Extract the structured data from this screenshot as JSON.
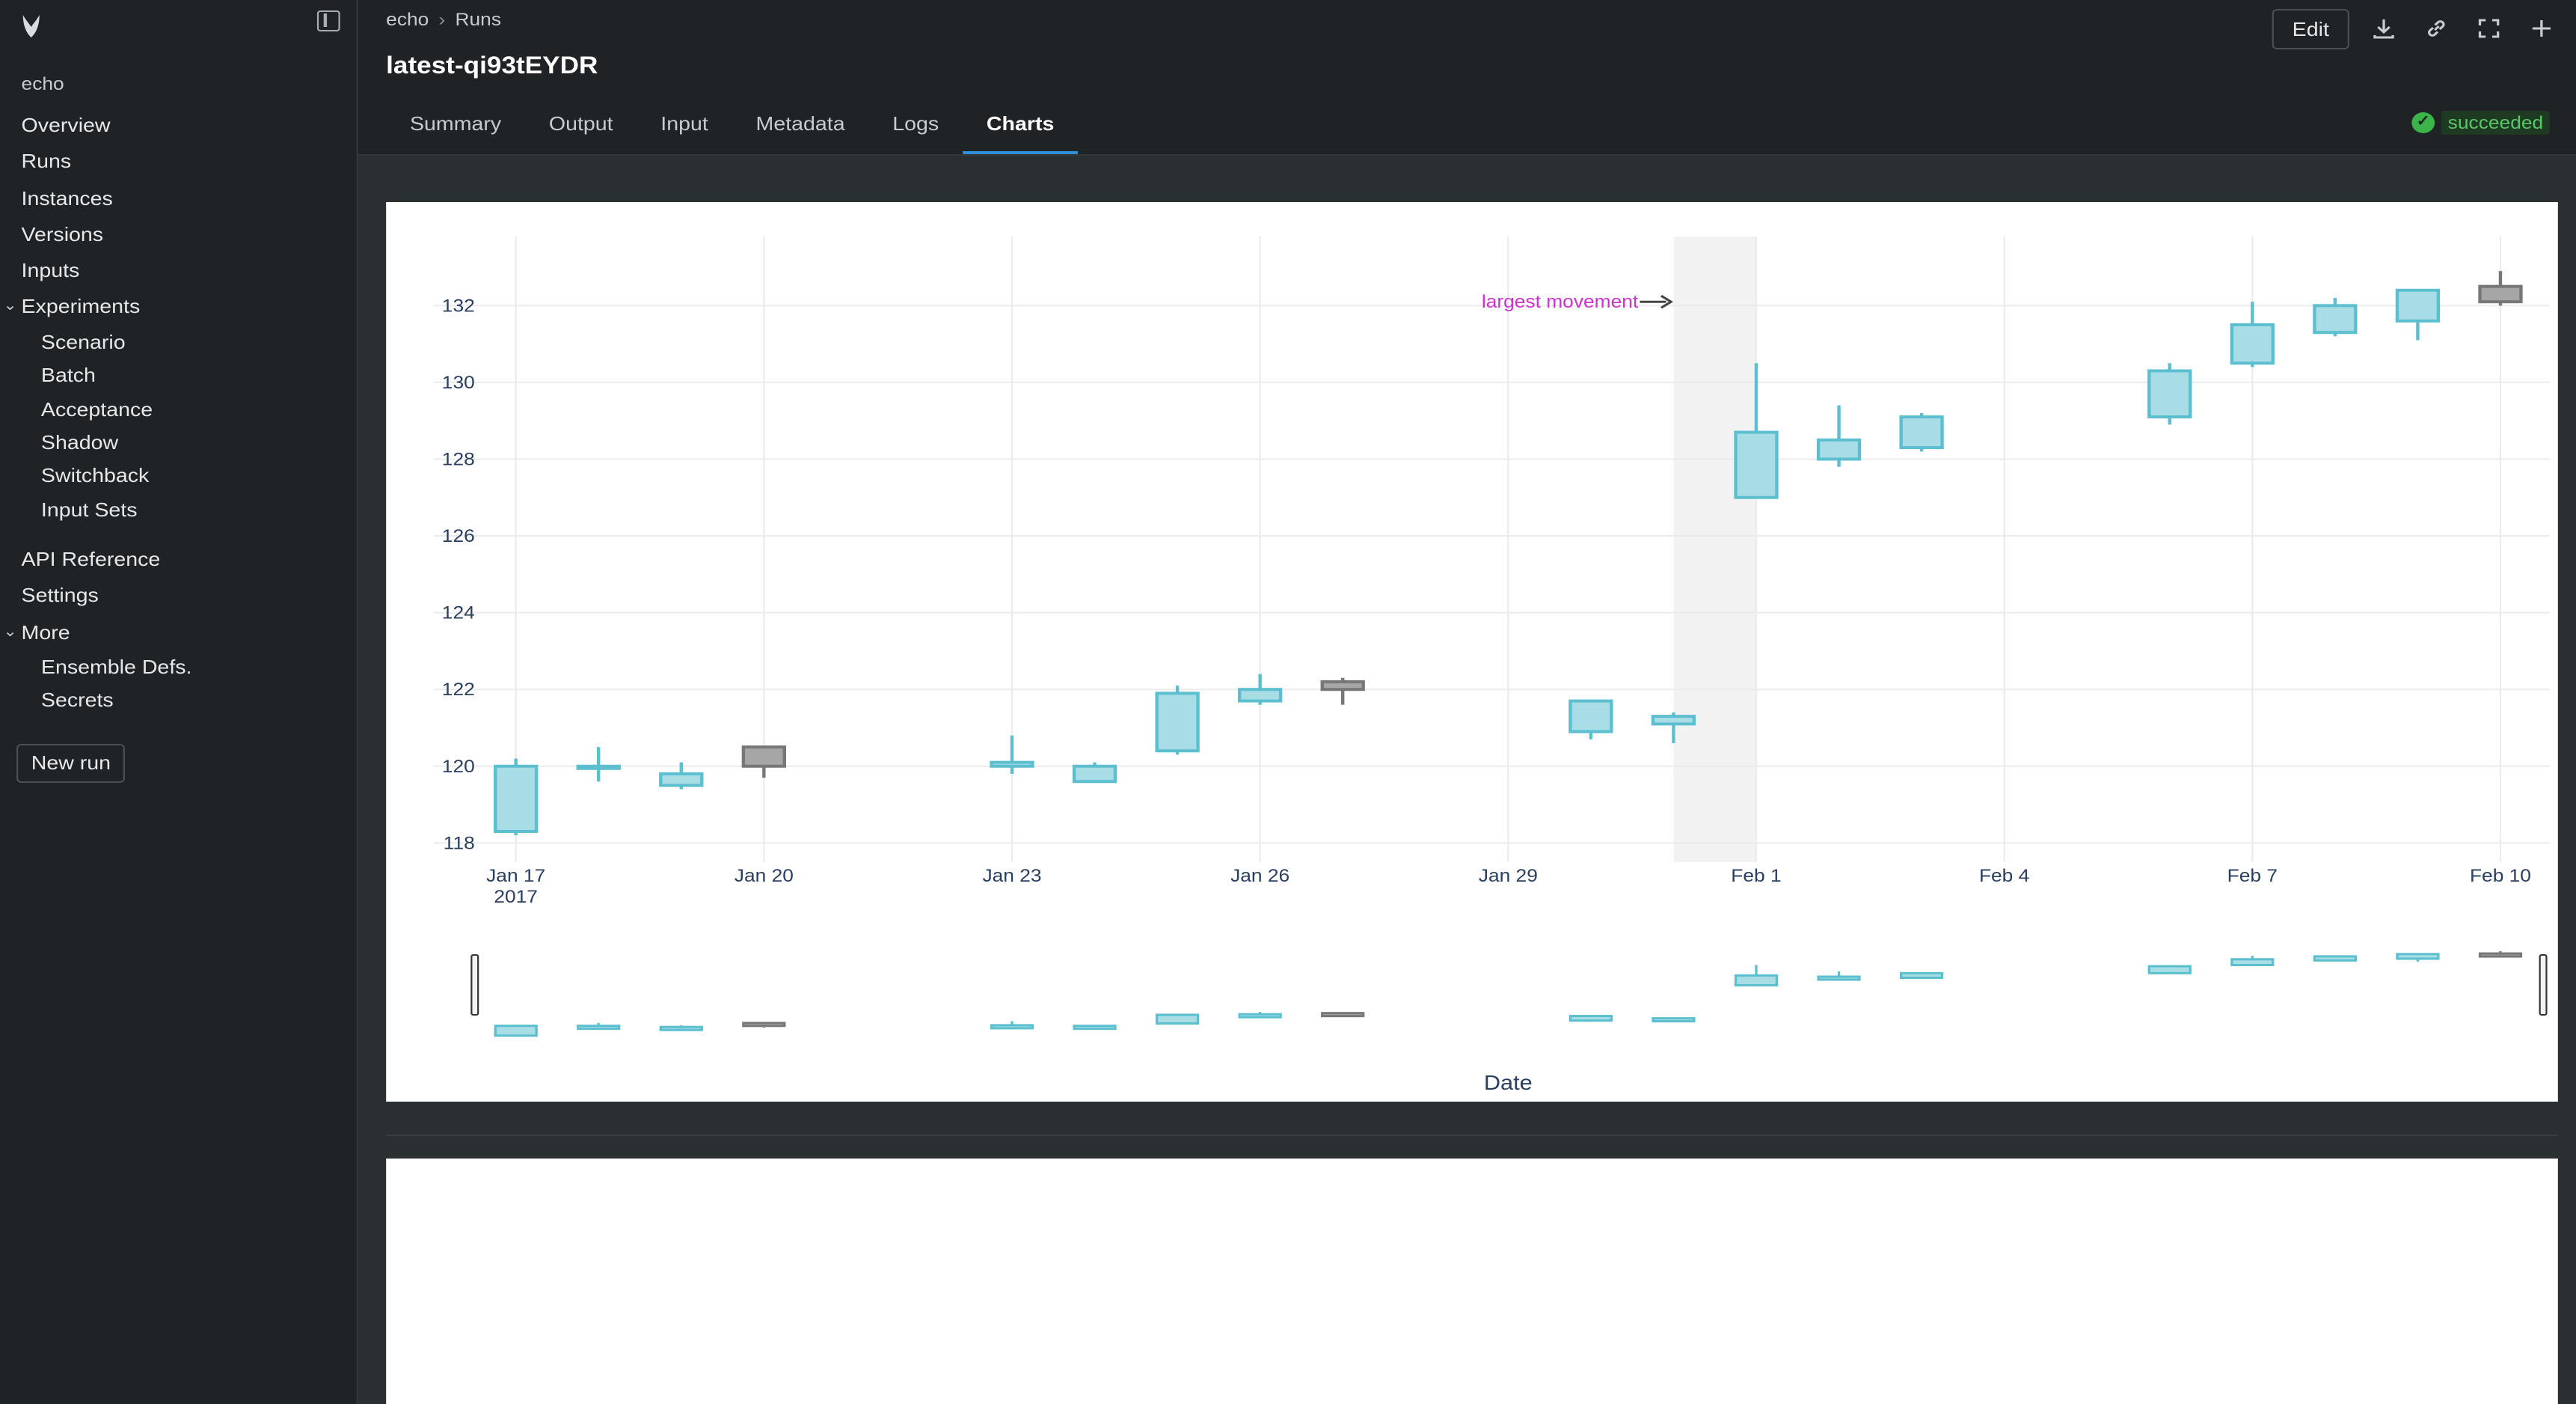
{
  "sidebar": {
    "label": "echo",
    "items": [
      {
        "label": "Overview"
      },
      {
        "label": "Runs"
      },
      {
        "label": "Instances"
      },
      {
        "label": "Versions"
      },
      {
        "label": "Inputs"
      },
      {
        "label": "Experiments"
      },
      {
        "label": "Scenario"
      },
      {
        "label": "Batch"
      },
      {
        "label": "Acceptance"
      },
      {
        "label": "Shadow"
      },
      {
        "label": "Switchback"
      },
      {
        "label": "Input Sets"
      },
      {
        "label": "API Reference"
      },
      {
        "label": "Settings"
      },
      {
        "label": "More"
      },
      {
        "label": "Ensemble Defs."
      },
      {
        "label": "Secrets"
      }
    ],
    "new_run": "New run"
  },
  "header": {
    "breadcrumb": [
      "echo",
      "Runs"
    ],
    "title": "latest-qi93tEYDR",
    "edit": "Edit",
    "icons": [
      "download-icon",
      "link-icon",
      "fullscreen-icon",
      "plus-icon"
    ],
    "tabs": [
      "Summary",
      "Output",
      "Input",
      "Metadata",
      "Logs",
      "Charts"
    ],
    "active_tab": "Charts",
    "status": "succeeded",
    "status_color": "#58c765"
  },
  "colors": {
    "increasing": "#5bbfcf",
    "increasing_fill": "#a8dde6",
    "decreasing": "#777777",
    "decreasing_fill": "#a6a6a6",
    "annotation": "#cc33cc"
  },
  "chart_data": {
    "type": "candlestick",
    "xlabel": "Date",
    "ylabel": "",
    "x_ticks": [
      "Jan 17",
      "Jan 20",
      "Jan 23",
      "Jan 26",
      "Jan 29",
      "Feb 1",
      "Feb 4",
      "Feb 7",
      "Feb 10"
    ],
    "x_tick_sub": "2017",
    "y_ticks": [
      118,
      120,
      122,
      124,
      126,
      128,
      130,
      132
    ],
    "ylim": [
      117.5,
      133.8
    ],
    "xlim": [
      "2017-01-17",
      "2017-02-10"
    ],
    "annotation": {
      "text": "largest movement",
      "date": "2017-01-31"
    },
    "highlight": {
      "from": "2017-01-31",
      "to": "2017-02-01"
    },
    "range_slider": true,
    "candles": [
      {
        "date": "2017-01-17",
        "open": 118.3,
        "high": 120.2,
        "low": 118.2,
        "close": 120.0
      },
      {
        "date": "2017-01-18",
        "open": 120.0,
        "high": 120.5,
        "low": 119.6,
        "close": 120.0
      },
      {
        "date": "2017-01-19",
        "open": 119.5,
        "high": 120.1,
        "low": 119.4,
        "close": 119.8
      },
      {
        "date": "2017-01-20",
        "open": 120.5,
        "high": 120.5,
        "low": 119.7,
        "close": 120.0
      },
      {
        "date": "2017-01-23",
        "open": 120.0,
        "high": 120.8,
        "low": 119.8,
        "close": 120.1
      },
      {
        "date": "2017-01-24",
        "open": 119.6,
        "high": 120.1,
        "low": 119.6,
        "close": 120.0
      },
      {
        "date": "2017-01-25",
        "open": 120.4,
        "high": 122.1,
        "low": 120.3,
        "close": 121.9
      },
      {
        "date": "2017-01-26",
        "open": 121.7,
        "high": 122.4,
        "low": 121.6,
        "close": 122.0
      },
      {
        "date": "2017-01-27",
        "open": 122.2,
        "high": 122.3,
        "low": 121.6,
        "close": 122.0
      },
      {
        "date": "2017-01-30",
        "open": 120.9,
        "high": 121.7,
        "low": 120.7,
        "close": 121.7
      },
      {
        "date": "2017-01-31",
        "open": 121.1,
        "high": 121.4,
        "low": 120.6,
        "close": 121.3
      },
      {
        "date": "2017-02-01",
        "open": 127.0,
        "high": 130.5,
        "low": 127.0,
        "close": 128.7
      },
      {
        "date": "2017-02-02",
        "open": 128.0,
        "high": 129.4,
        "low": 127.8,
        "close": 128.5
      },
      {
        "date": "2017-02-03",
        "open": 128.3,
        "high": 129.2,
        "low": 128.2,
        "close": 129.1
      },
      {
        "date": "2017-02-06",
        "open": 129.1,
        "high": 130.5,
        "low": 128.9,
        "close": 130.3
      },
      {
        "date": "2017-02-07",
        "open": 130.5,
        "high": 132.1,
        "low": 130.4,
        "close": 131.5
      },
      {
        "date": "2017-02-08",
        "open": 131.3,
        "high": 132.2,
        "low": 131.2,
        "close": 132.0
      },
      {
        "date": "2017-02-09",
        "open": 131.6,
        "high": 132.4,
        "low": 131.1,
        "close": 132.4
      },
      {
        "date": "2017-02-10",
        "open": 132.5,
        "high": 132.9,
        "low": 132.0,
        "close": 132.1
      }
    ]
  }
}
